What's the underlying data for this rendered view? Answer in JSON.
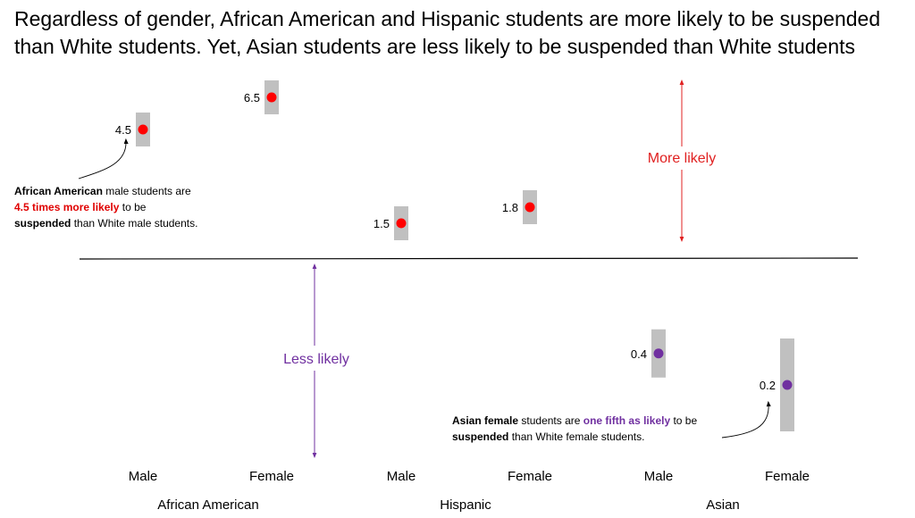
{
  "chart_data": {
    "type": "scatter",
    "title": "Regardless of gender,  African American and Hispanic students are more likely to be suspended than White students. Yet, Asian students are less likely to be suspended than White students",
    "groups": [
      "African American",
      "Hispanic",
      "Asian"
    ],
    "categories": [
      "Male",
      "Female",
      "Male",
      "Female",
      "Male",
      "Female"
    ],
    "values": [
      4.5,
      6.5,
      1.5,
      1.8,
      0.4,
      0.2
    ],
    "value_labels": [
      "4.5",
      "6.5",
      "1.5",
      "1.8",
      "0.4",
      "0.2"
    ],
    "reference_value": 1,
    "more_label": "More likely",
    "less_label": "Less likely",
    "colors": {
      "above": "#ff0000",
      "below": "#7030a0",
      "band": "#c0c0c0",
      "more_arrow": "#e02020",
      "less_arrow": "#7030a0"
    },
    "grid": false
  },
  "annotations": {
    "aa": {
      "part1": "African American",
      "part2": " male students are ",
      "part3": "4.5 times more likely",
      "part4": " to be ",
      "part5": "suspended",
      "part6": " than White male students."
    },
    "asian": {
      "part1": "Asian female",
      "part2": " students are ",
      "part3": "one fifth as likely",
      "part4": " to be ",
      "part5": "suspended",
      "part6": " than White female students."
    }
  }
}
